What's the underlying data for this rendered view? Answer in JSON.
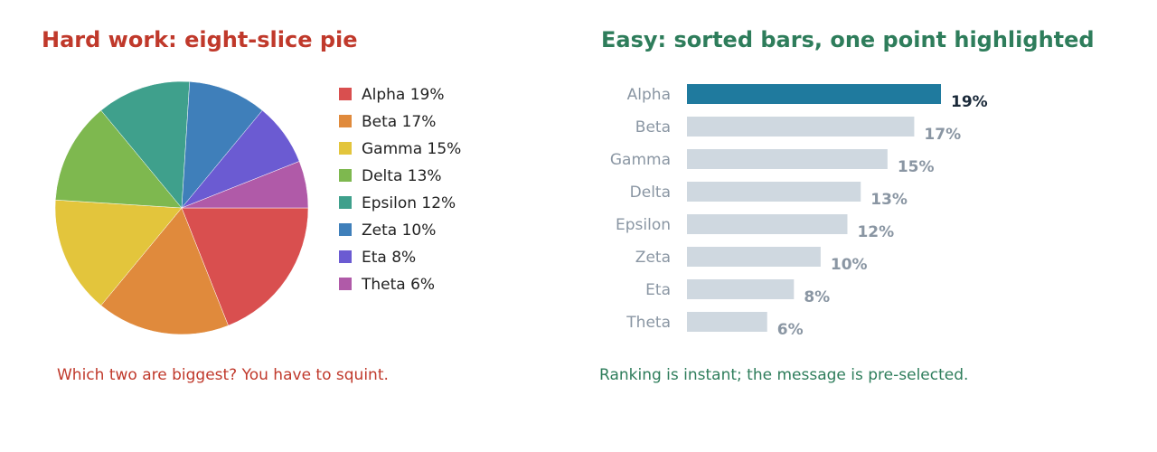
{
  "colors": {
    "hard_title": "#c0392b",
    "easy_title": "#2e7d5b",
    "highlight_bar": "#1f7a9e",
    "muted_bar": "#cfd8e0",
    "muted_text": "#8a96a3",
    "highlight_text": "#1b2a3a",
    "legend_text": "#222222"
  },
  "panels": {
    "left": {
      "title": "Hard work: eight-slice pie",
      "caption": "Which two are biggest? You have to squint."
    },
    "right": {
      "title": "Easy: sorted bars, one point highlighted",
      "caption": "Ranking is instant; the message is pre-selected."
    }
  },
  "chart_data": [
    {
      "type": "pie",
      "title": "Hard work: eight-slice pie",
      "labels": [
        "Alpha",
        "Beta",
        "Gamma",
        "Delta",
        "Epsilon",
        "Zeta",
        "Eta",
        "Theta"
      ],
      "values": [
        19,
        17,
        15,
        13,
        12,
        10,
        8,
        6
      ],
      "unit": "%",
      "colors": [
        "#d94f4f",
        "#e08a3c",
        "#e3c53c",
        "#7eb84f",
        "#3fa08c",
        "#3f7fba",
        "#6b5bd2",
        "#b05aa8"
      ],
      "start": "3 o'clock",
      "direction": "clockwise",
      "legend": "right",
      "legend_entries": [
        "Alpha  19%",
        "Beta  17%",
        "Gamma  15%",
        "Delta  13%",
        "Epsilon  12%",
        "Zeta  10%",
        "Eta  8%",
        "Theta  6%"
      ]
    },
    {
      "type": "bar",
      "orientation": "horizontal",
      "title": "Easy: sorted bars, one point highlighted",
      "categories": [
        "Alpha",
        "Beta",
        "Gamma",
        "Delta",
        "Epsilon",
        "Zeta",
        "Eta",
        "Theta"
      ],
      "values": [
        19,
        17,
        15,
        13,
        12,
        10,
        8,
        6
      ],
      "data_labels": [
        "19%",
        "17%",
        "15%",
        "13%",
        "12%",
        "10%",
        "8%",
        "6%"
      ],
      "highlighted": "Alpha",
      "sorted": "descending",
      "xlim": [
        0,
        19
      ],
      "grid": false,
      "axes_visible": false
    }
  ]
}
